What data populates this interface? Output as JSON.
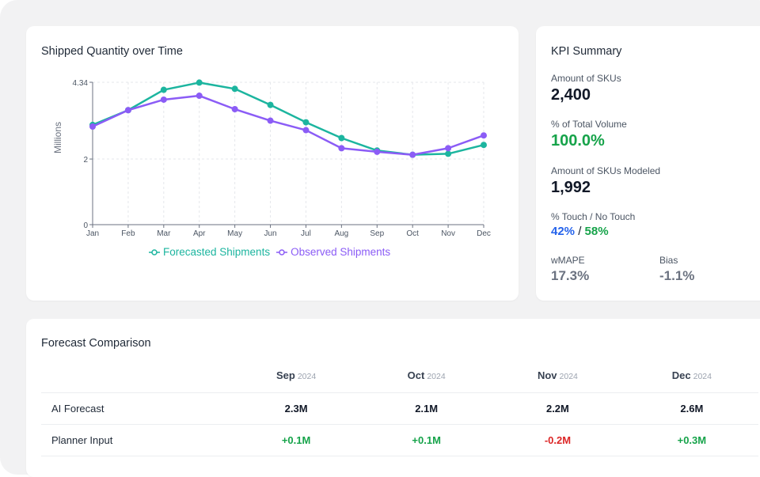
{
  "chart_card": {
    "title": "Shipped Quantity over Time"
  },
  "chart_data": {
    "type": "line",
    "title": "Shipped Quantity over Time",
    "xlabel": "",
    "ylabel": "Millions",
    "x": [
      "Jan",
      "Feb",
      "Mar",
      "Apr",
      "May",
      "Jun",
      "Jul",
      "Aug",
      "Sep",
      "Oct",
      "Nov",
      "Dec"
    ],
    "yticks": [
      0,
      2,
      4.34
    ],
    "ytick_labels": [
      "0",
      "2",
      "4.34"
    ],
    "ylim": [
      0,
      4.34
    ],
    "grid": true,
    "legend_position": "bottom",
    "series": [
      {
        "name": "Forecasted Shipments",
        "color": "#1cb59f",
        "values": [
          3.04,
          3.49,
          4.11,
          4.33,
          4.14,
          3.65,
          3.12,
          2.64,
          2.26,
          2.13,
          2.16,
          2.43
        ]
      },
      {
        "name": "Observed Shipments",
        "color": "#8b5cf6",
        "values": [
          2.99,
          3.49,
          3.81,
          3.93,
          3.52,
          3.17,
          2.88,
          2.33,
          2.22,
          2.13,
          2.33,
          2.72
        ]
      }
    ]
  },
  "kpi": {
    "title": "KPI Summary",
    "skus_label": "Amount of SKUs",
    "skus_value": "2,400",
    "volume_label": "% of Total Volume",
    "volume_value": "100.0%",
    "modeled_label": "Amount of SKUs Modeled",
    "modeled_value": "1,992",
    "touch_label": "% Touch / No Touch",
    "touch_value": "42%",
    "touch_sep": "/",
    "no_touch_value": "58%",
    "wmape_label": "wMAPE",
    "wmape_value": "17.3%",
    "bias_label": "Bias",
    "bias_value": "-1.1%"
  },
  "forecast_table": {
    "title": "Forecast Comparison",
    "columns": [
      {
        "month": "Sep",
        "year": "2024"
      },
      {
        "month": "Oct",
        "year": "2024"
      },
      {
        "month": "Nov",
        "year": "2024"
      },
      {
        "month": "Dec",
        "year": "2024"
      }
    ],
    "rows": [
      {
        "label": "AI Forecast",
        "cells": [
          "2.3M",
          "2.1M",
          "2.2M",
          "2.6M"
        ]
      },
      {
        "label": "Planner Input",
        "cells": [
          "+0.1M",
          "+0.1M",
          "-0.2M",
          "+0.3M"
        ]
      }
    ]
  }
}
